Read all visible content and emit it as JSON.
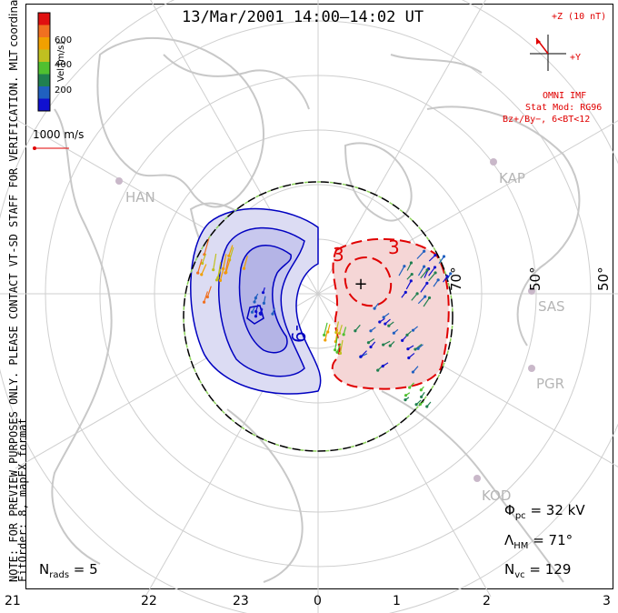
{
  "title": "13/Mar/2001 14:00–14:02 UT",
  "coords_label": "MLT coordinates",
  "note_line1": "NOTE: FOR PREVIEW PURPOSES ONLY. PLEASE CONTACT VT-SD STAFF FOR VERIFICATION.",
  "note_line2": "FitOrder: 8, mapEX format",
  "velocity_scale": {
    "label": "Vel [m/s]",
    "ticks": [
      "600",
      "400",
      "200"
    ],
    "colors": [
      "#e01010",
      "#f07020",
      "#f0a000",
      "#c0c020",
      "#50c030",
      "#208050",
      "#2060c0",
      "#1010d0"
    ]
  },
  "reference_vector_label": "1000 m/s",
  "imf": {
    "z_label": "+Z (10 nT)",
    "y_label": "+Y",
    "source": "OMNI IMF",
    "model": "Stat Mod: RG96",
    "condition": "Bz+/By−, 6<BT<12"
  },
  "hour_labels": [
    "21",
    "22",
    "23",
    "0",
    "1",
    "2",
    "3"
  ],
  "latitude_labels": [
    "70°",
    "50°",
    "50°"
  ],
  "sites": [
    "HAN",
    "KAP",
    "SAS",
    "PGR",
    "KOD"
  ],
  "contour_labels": [
    "-9",
    "3",
    "3"
  ],
  "stats": {
    "phi_pc": "32 kV",
    "lambda_hm": "71°",
    "n_vc": "129",
    "n_rads": "5"
  },
  "colors": {
    "positive_cell": "#f5d6d6",
    "negative_cell": "#c8c8ee",
    "positive_line": "#e00000",
    "negative_line": "#0000c0"
  }
}
